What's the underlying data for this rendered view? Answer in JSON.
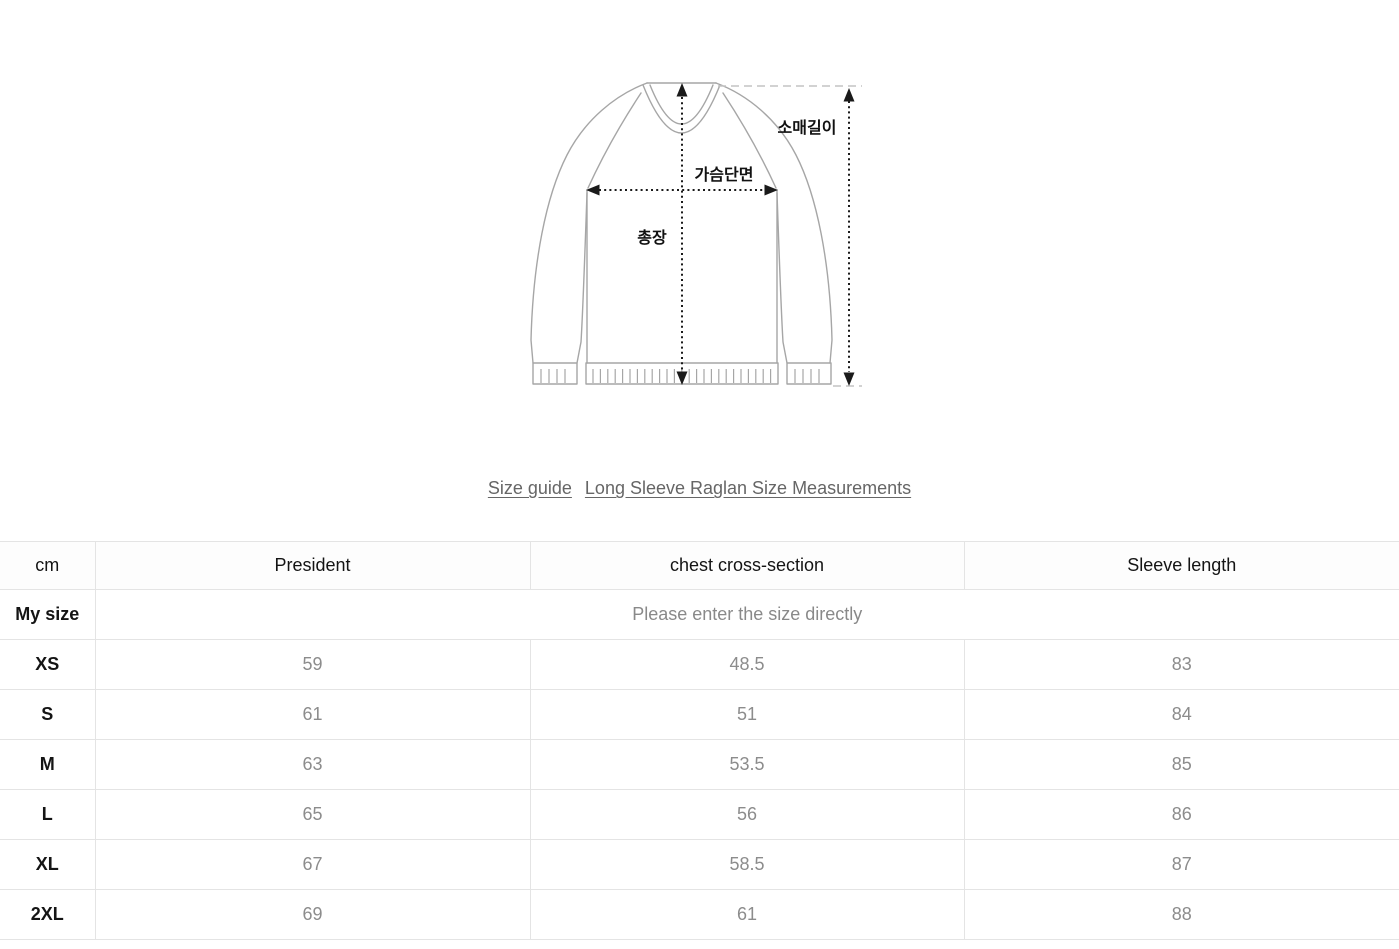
{
  "diagram": {
    "labels": {
      "sleeve_length": "소매길이",
      "chest": "가슴단면",
      "total_length": "총장"
    },
    "colors": {
      "outline": "#a6a6a6",
      "arrow": "#1a1a1a",
      "dashed_guide": "#c4c4c4",
      "label_text": "#111111"
    }
  },
  "links": {
    "size_guide": "Size guide",
    "measurements": "Long Sleeve Raglan Size Measurements"
  },
  "table": {
    "unit_header": "cm",
    "headers": [
      "President",
      "chest cross-section",
      "Sleeve length"
    ],
    "my_size": {
      "label": "My size",
      "placeholder": "Please enter the size directly"
    },
    "rows": [
      {
        "size": "XS",
        "values": [
          "59",
          "48.5",
          "83"
        ]
      },
      {
        "size": "S",
        "values": [
          "61",
          "51",
          "84"
        ]
      },
      {
        "size": "M",
        "values": [
          "63",
          "53.5",
          "85"
        ]
      },
      {
        "size": "L",
        "values": [
          "65",
          "56",
          "86"
        ]
      },
      {
        "size": "XL",
        "values": [
          "67",
          "58.5",
          "87"
        ]
      },
      {
        "size": "2XL",
        "values": [
          "69",
          "61",
          "88"
        ]
      }
    ]
  }
}
